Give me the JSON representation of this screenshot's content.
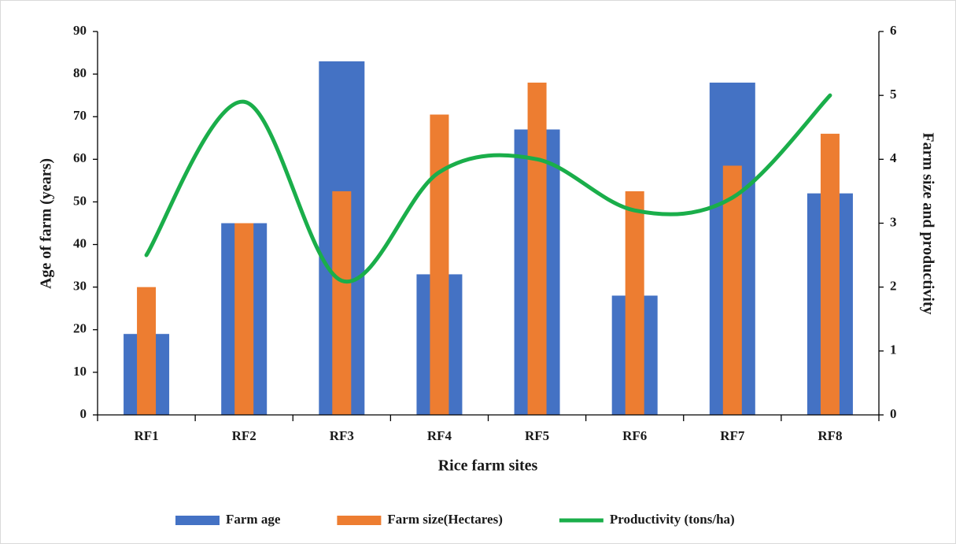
{
  "chart_data": {
    "type": "combo",
    "x_label": "Rice farm sites",
    "y_label": "Age of farm (years)",
    "y2_label": "Farm size and productivity",
    "categories": [
      "RF1",
      "RF2",
      "RF3",
      "RF4",
      "RF5",
      "RF6",
      "RF7",
      "RF8"
    ],
    "series": [
      {
        "name": "Farm age",
        "type": "bar",
        "color": "#4472c4",
        "values": [
          19,
          45,
          83,
          33,
          67,
          28,
          78,
          52
        ]
      },
      {
        "name": "Farm size(Hectares)",
        "type": "bar",
        "axis": "y2",
        "color": "#ed7d31",
        "values": [
          2.0,
          3.0,
          3.5,
          4.7,
          5.2,
          3.5,
          3.9,
          4.4
        ]
      },
      {
        "name": "Productivity (tons/ha)",
        "type": "line",
        "axis": "y2",
        "smooth": true,
        "color": "#1aae4a",
        "values": [
          2.5,
          4.9,
          2.1,
          3.8,
          4.0,
          3.2,
          3.4,
          5.0
        ]
      }
    ],
    "ylim": [
      0,
      90
    ],
    "yticks": [
      0,
      10,
      20,
      30,
      40,
      50,
      60,
      70,
      80,
      90
    ],
    "y2lim": [
      0,
      6
    ],
    "y2ticks": [
      0,
      1,
      2,
      3,
      4,
      5,
      6
    ],
    "grid": false,
    "legend": "bottom"
  }
}
